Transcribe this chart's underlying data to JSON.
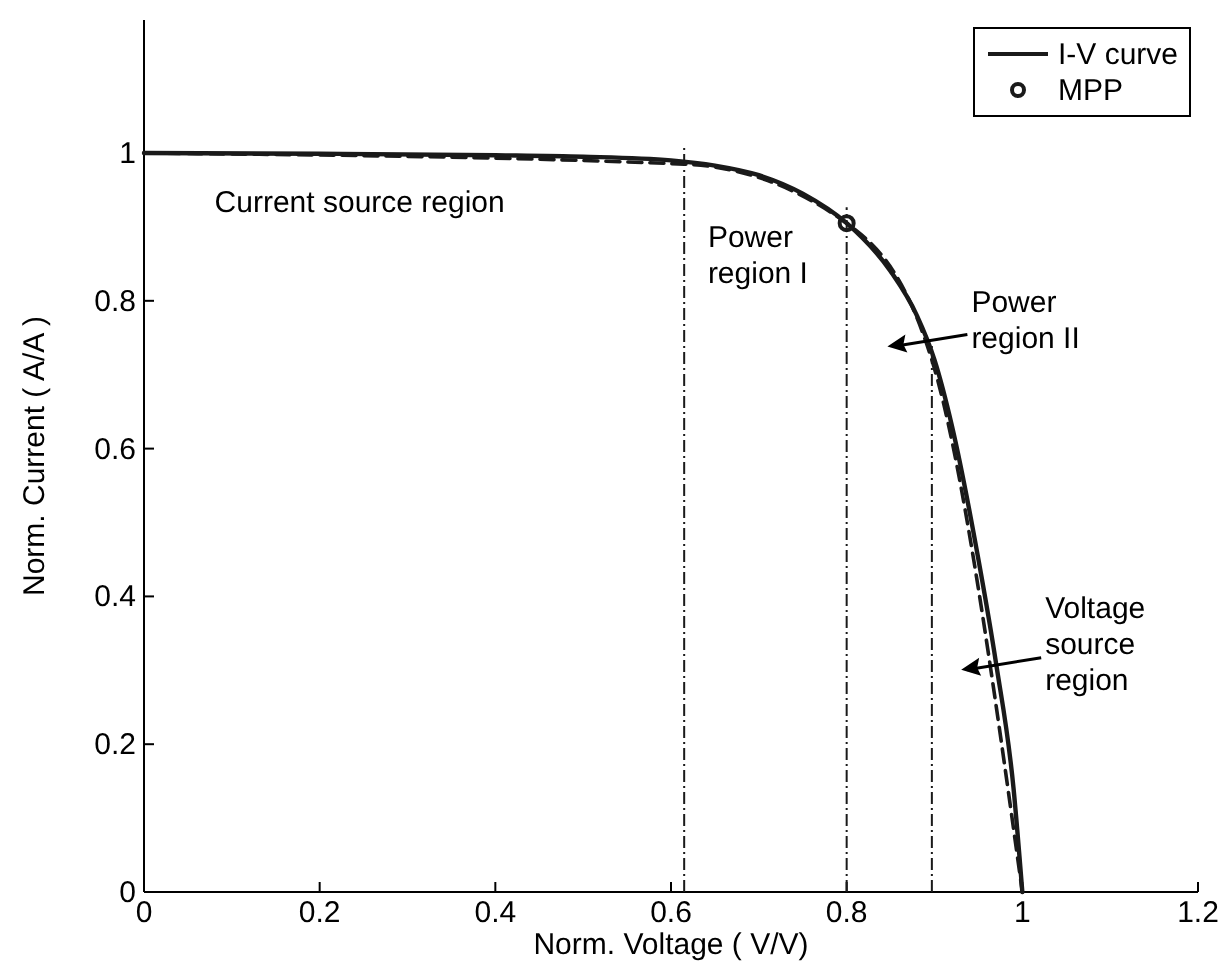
{
  "chart_data": {
    "type": "line",
    "xlabel": "Norm. Voltage ( V/V)",
    "ylabel": "Norm. Current ( A/A )",
    "xlim": [
      0,
      1.2
    ],
    "ylim": [
      0,
      1.18
    ],
    "xticks": [
      0,
      0.2,
      0.4,
      0.6,
      0.8,
      1,
      1.2
    ],
    "yticks": [
      0,
      0.2,
      0.4,
      0.6,
      0.8,
      1
    ],
    "legend": "top right",
    "grid": false,
    "series": [
      {
        "name": "I-V curve",
        "type": "line",
        "color": "#1a1a1a",
        "line_style": "solid",
        "x": [
          0,
          0.2,
          0.4,
          0.5,
          0.6,
          0.65,
          0.7,
          0.75,
          0.8,
          0.85,
          0.88,
          0.9,
          0.92,
          0.95,
          0.97,
          0.99,
          1
        ],
        "values": [
          1,
          0.999,
          0.997,
          0.995,
          0.99,
          0.983,
          0.97,
          0.945,
          0.905,
          0.84,
          0.78,
          0.72,
          0.63,
          0.45,
          0.31,
          0.14,
          0
        ]
      },
      {
        "type": "line",
        "color": "#1a1a1a",
        "line_style": "dashed",
        "x": [
          0,
          0.615,
          0.8,
          0.897,
          1
        ],
        "values": [
          1,
          0.985,
          0.905,
          0.72,
          0
        ]
      },
      {
        "name": "MPP",
        "type": "scatter",
        "color": "#1a1a1a",
        "marker": "circle",
        "x": [
          0.8
        ],
        "values": [
          0.905
        ]
      }
    ],
    "ref_lines": [
      {
        "axis": "x",
        "value": 0.615,
        "color": "#1a1a1a"
      },
      {
        "axis": "x",
        "value": 0.8,
        "color": "#1a1a1a"
      },
      {
        "axis": "x",
        "value": 0.897,
        "color": "#1a1a1a"
      }
    ],
    "annotations": [
      "Current source region",
      "Power\nregion I",
      "Power\nregion II",
      "Voltage\nsource\nregion"
    ]
  }
}
